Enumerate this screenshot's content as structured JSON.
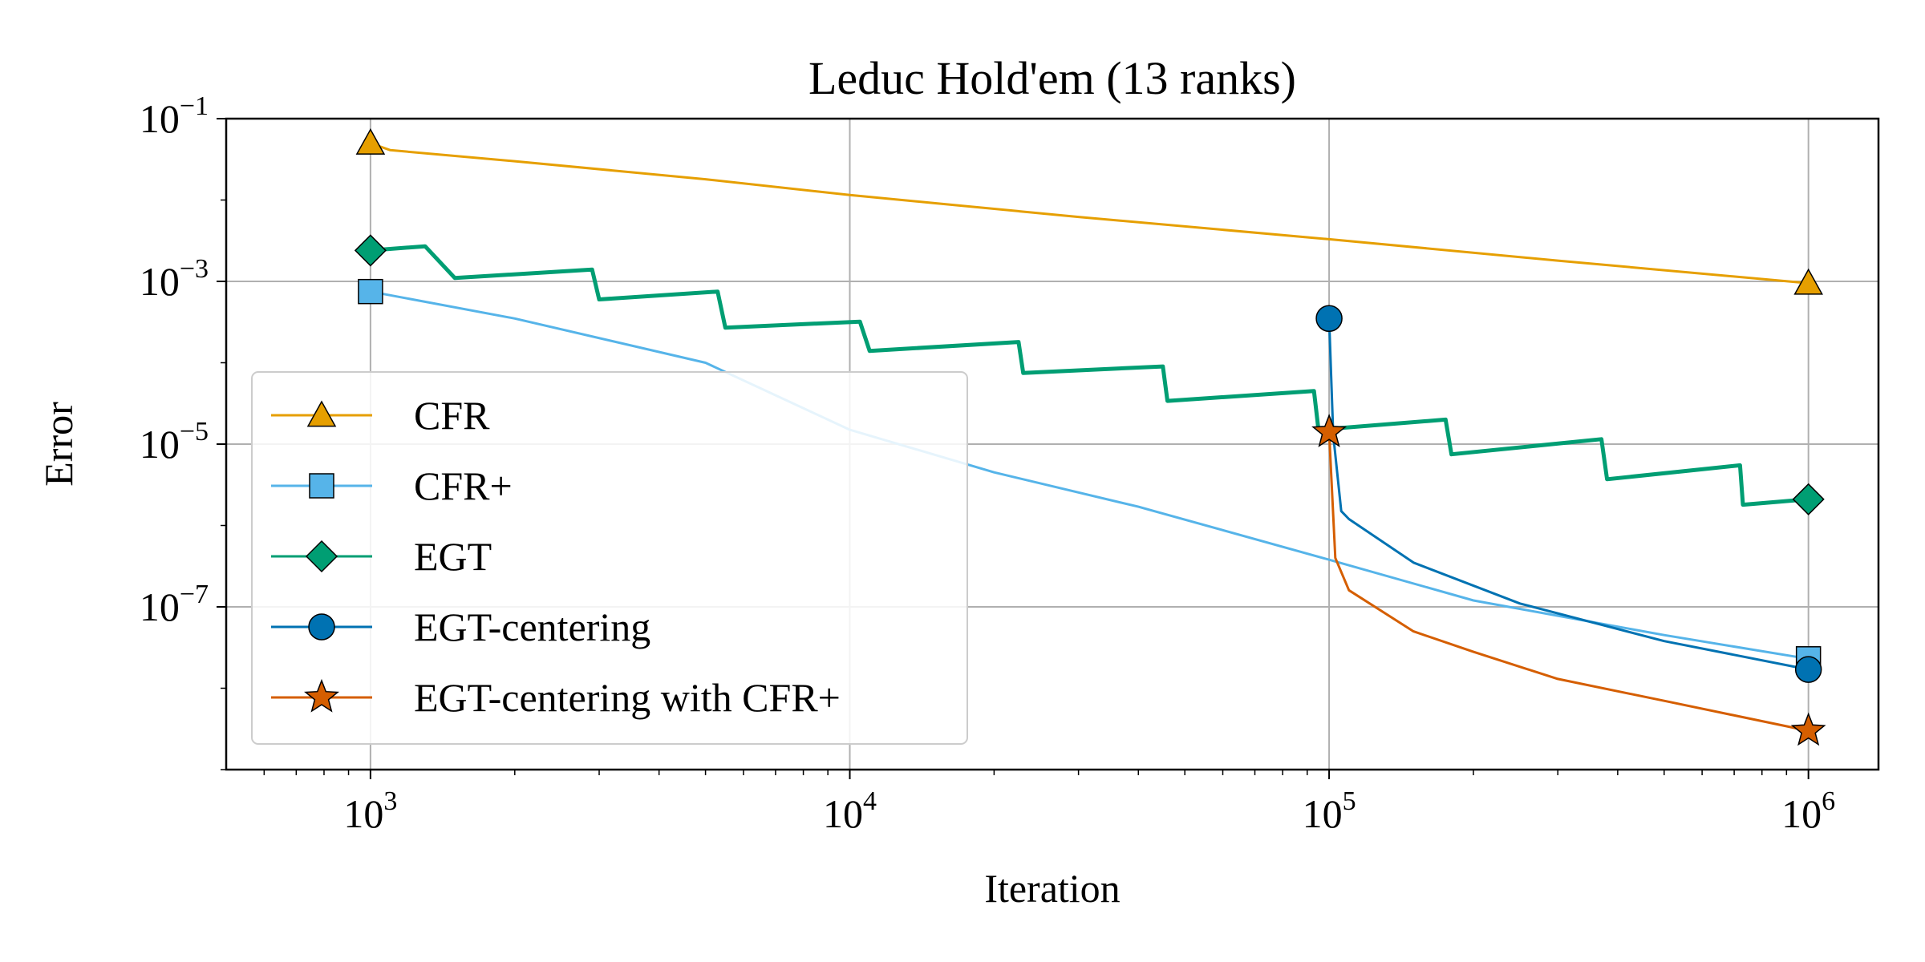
{
  "chart_data": {
    "type": "line",
    "title": "Leduc Hold'em (13 ranks)",
    "xlabel": "Iteration",
    "ylabel": "Error",
    "xscale": "log",
    "yscale": "log",
    "xlim": [
      500,
      1400000
    ],
    "ylim": [
      1e-09,
      0.1
    ],
    "grid": true,
    "legend_position": "lower-left",
    "x_ticks": [
      {
        "value": 1000,
        "base": "10",
        "exp": "3"
      },
      {
        "value": 10000,
        "base": "10",
        "exp": "4"
      },
      {
        "value": 100000,
        "base": "10",
        "exp": "5"
      },
      {
        "value": 1000000,
        "base": "10",
        "exp": "6"
      }
    ],
    "y_ticks": [
      {
        "value": 1e-07,
        "base": "10",
        "exp": "−7"
      },
      {
        "value": 1e-05,
        "base": "10",
        "exp": "−5"
      },
      {
        "value": 0.001,
        "base": "10",
        "exp": "−3"
      },
      {
        "value": 0.1,
        "base": "10",
        "exp": "−1"
      }
    ],
    "series": [
      {
        "name": "CFR",
        "color": "#E69F00",
        "marker": "triangle",
        "points": [
          [
            1000,
            0.05
          ],
          [
            1100,
            0.041
          ],
          [
            2000,
            0.03
          ],
          [
            5000,
            0.018
          ],
          [
            10000,
            0.0115
          ],
          [
            30000,
            0.0062
          ],
          [
            100000,
            0.0033
          ],
          [
            300000,
            0.0018
          ],
          [
            1000000,
            0.00095
          ]
        ]
      },
      {
        "name": "CFR+",
        "color": "#56B4E9",
        "marker": "square",
        "points": [
          [
            1000,
            0.00075
          ],
          [
            2000,
            0.00035
          ],
          [
            5000,
            0.0001
          ],
          [
            10000,
            1.5e-05
          ],
          [
            20000,
            4.5e-06
          ],
          [
            40000,
            1.7e-06
          ],
          [
            100000,
            3.8e-07
          ],
          [
            200000,
            1.2e-07
          ],
          [
            500000,
            4.5e-08
          ],
          [
            1000000,
            2.3e-08
          ]
        ]
      },
      {
        "name": "EGT",
        "color": "#009E73",
        "marker": "diamond",
        "points": [
          [
            1000,
            0.0024
          ],
          [
            1300,
            0.0027
          ],
          [
            1500,
            0.0011
          ],
          [
            2900,
            0.0014
          ],
          [
            3000,
            0.0006
          ],
          [
            5300,
            0.00075
          ],
          [
            5500,
            0.00027
          ],
          [
            10500,
            0.00032
          ],
          [
            11000,
            0.00014
          ],
          [
            22500,
            0.00018
          ],
          [
            23000,
            7.5e-05
          ],
          [
            45000,
            9e-05
          ],
          [
            46000,
            3.4e-05
          ],
          [
            93000,
            4.5e-05
          ],
          [
            95000,
            1.5e-05
          ],
          [
            175000,
            2e-05
          ],
          [
            180000,
            7.5e-06
          ],
          [
            370000,
            1.15e-05
          ],
          [
            380000,
            3.7e-06
          ],
          [
            720000,
            5.5e-06
          ],
          [
            730000,
            1.8e-06
          ],
          [
            1000000,
            2.1e-06
          ]
        ]
      },
      {
        "name": "EGT-centering",
        "color": "#0072B2",
        "marker": "circle",
        "points": [
          [
            100000,
            0.00035
          ],
          [
            102000,
            1.3e-05
          ],
          [
            106000,
            1.5e-06
          ],
          [
            110000,
            1.2e-06
          ],
          [
            150000,
            3.5e-07
          ],
          [
            250000,
            1.1e-07
          ],
          [
            500000,
            3.8e-08
          ],
          [
            1000000,
            1.7e-08
          ]
        ]
      },
      {
        "name": "EGT-centering with CFR+",
        "color": "#D55E00",
        "marker": "star",
        "points": [
          [
            100000,
            1.4e-05
          ],
          [
            103000,
            4e-07
          ],
          [
            110000,
            1.6e-07
          ],
          [
            150000,
            5e-08
          ],
          [
            200000,
            2.8e-08
          ],
          [
            300000,
            1.3e-08
          ],
          [
            500000,
            7e-09
          ],
          [
            1000000,
            3e-09
          ]
        ]
      }
    ]
  }
}
